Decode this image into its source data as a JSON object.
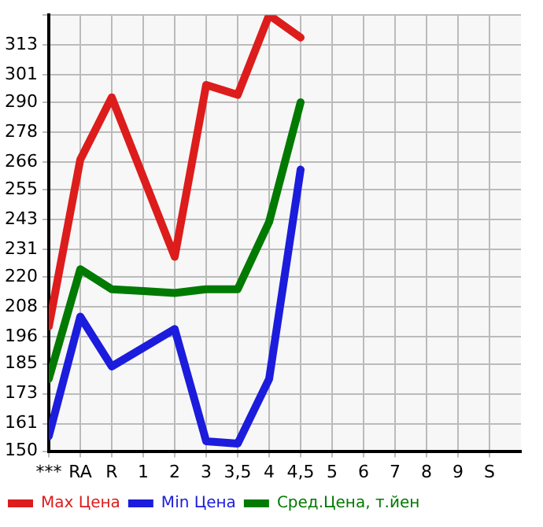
{
  "chart_data": {
    "type": "line",
    "categories": [
      "***",
      "RA",
      "R",
      "1",
      "2",
      "3",
      "3,5",
      "4",
      "4,5",
      "5",
      "6",
      "7",
      "8",
      "9",
      "S"
    ],
    "series": [
      {
        "name": "Max Цена",
        "color": "#dd1c1c",
        "values": [
          200,
          267,
          292,
          260,
          228,
          297,
          293,
          325,
          316,
          null,
          null,
          null,
          null,
          null,
          null
        ]
      },
      {
        "name": "Min Цена",
        "color": "#1c1cdd",
        "values": [
          156,
          204,
          184,
          191.5,
          199,
          154,
          153,
          179,
          263,
          null,
          null,
          null,
          null,
          null,
          null
        ]
      },
      {
        "name": "Сред.Цена, т.йен",
        "color": "#007a00",
        "values": [
          179,
          223,
          215,
          214.3,
          213.5,
          215,
          215,
          242,
          290,
          null,
          null,
          null,
          null,
          null,
          null
        ]
      }
    ],
    "ylim": [
      150,
      325
    ],
    "yticks": [
      150,
      161,
      173,
      185,
      196,
      208,
      220,
      231,
      243,
      255,
      266,
      278,
      290,
      301,
      313,
      {
        "value": 325,
        "label": null
      }
    ],
    "grid": true,
    "legend": "bottom",
    "marker": "none",
    "line_style": "solid"
  }
}
